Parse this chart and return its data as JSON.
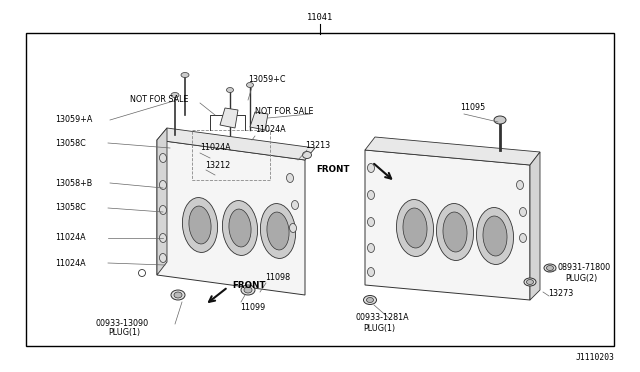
{
  "bg_color": "#ffffff",
  "border_color": "#000000",
  "line_color": "#555555",
  "text_color": "#000000",
  "fig_width": 6.4,
  "fig_height": 3.72,
  "dpi": 100,
  "part_number_top": "11041",
  "diagram_id": "J1110203",
  "border": [
    0.04,
    0.07,
    0.96,
    0.91
  ],
  "fs": 5.8
}
